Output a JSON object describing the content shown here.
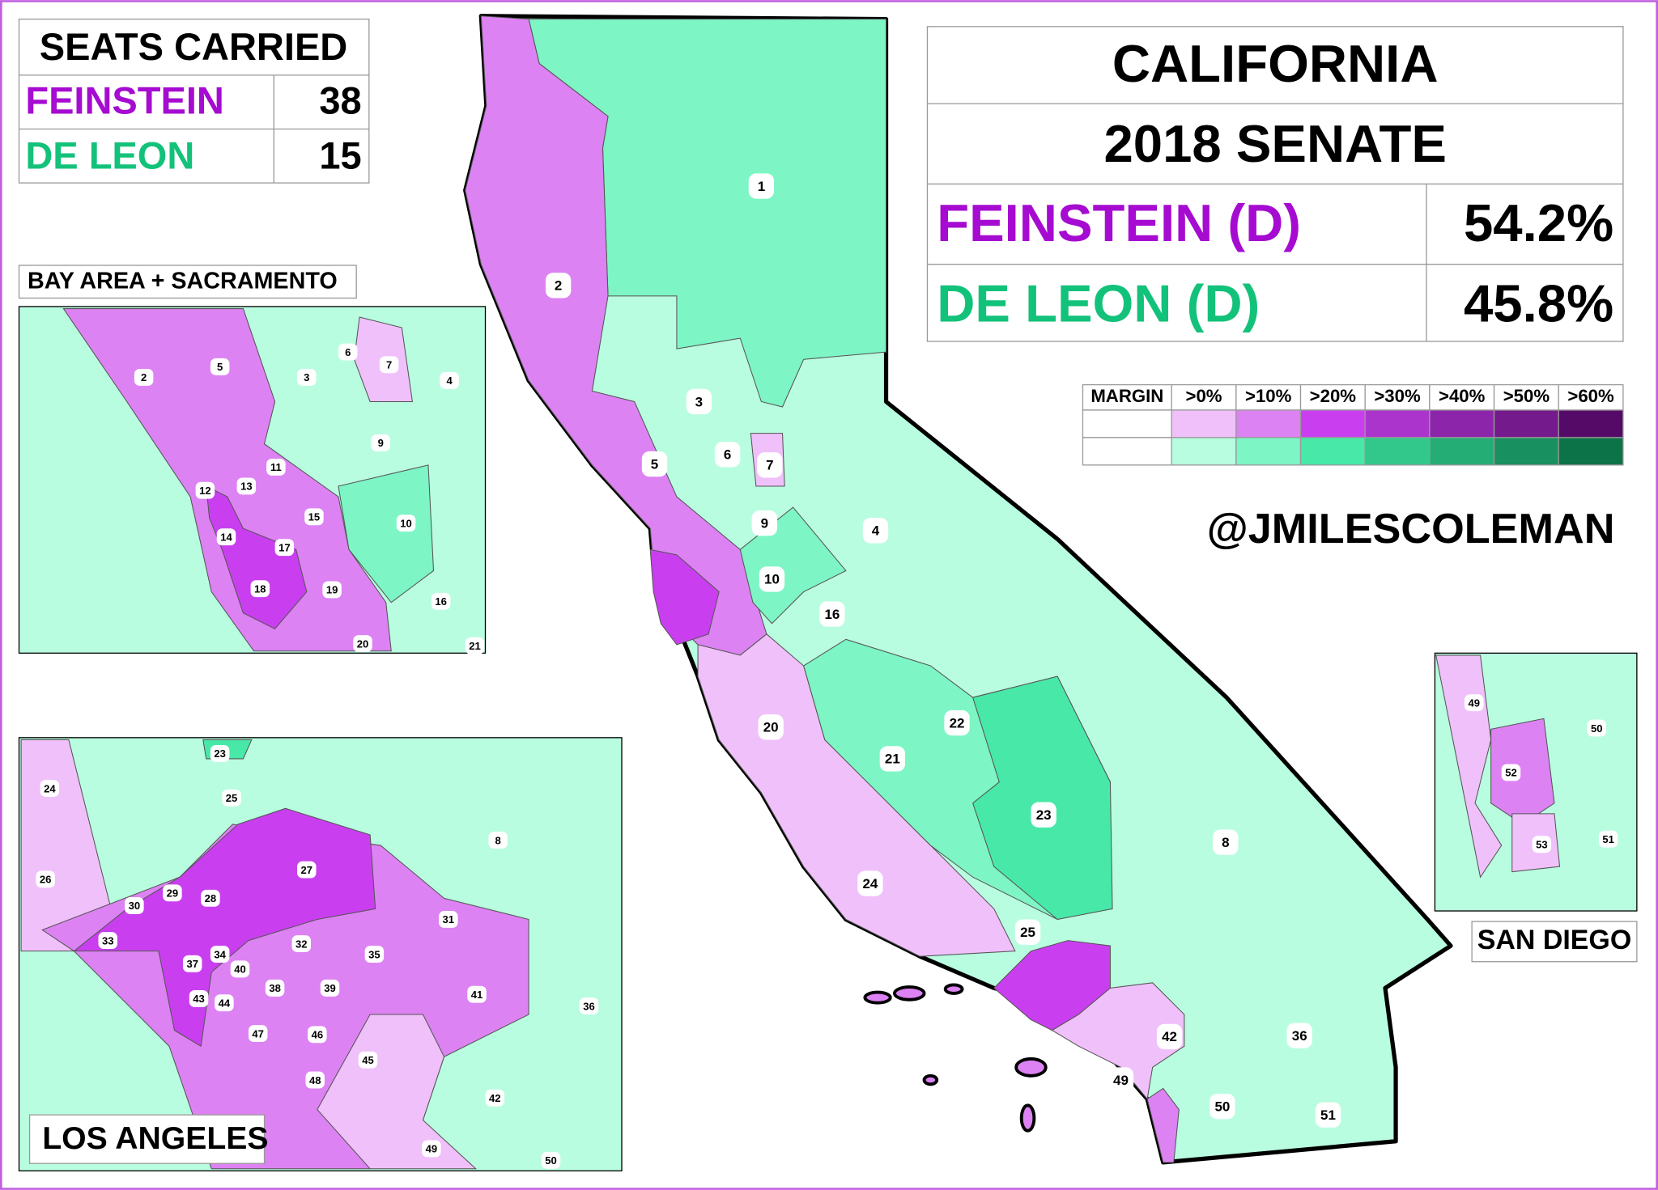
{
  "seats_table": {
    "title": "SEATS CARRIED",
    "rows": [
      {
        "name": "FEINSTEIN",
        "value": 38
      },
      {
        "name": "DE LEON",
        "value": 15
      }
    ]
  },
  "results": {
    "title": "CALIFORNIA",
    "subtitle": "2018 SENATE",
    "rows": [
      {
        "name": "FEINSTEIN (D)",
        "value": "54.2%"
      },
      {
        "name": "DE LEON (D)",
        "value": "45.8%"
      }
    ]
  },
  "legend": {
    "title": "MARGIN",
    "bins": [
      ">0%",
      ">10%",
      ">20%",
      ">30%",
      ">40%",
      ">50%",
      ">60%"
    ],
    "feinstein_colors": [
      "#f0c0fb",
      "#dd82f3",
      "#c93fef",
      "#ab35cc",
      "#8d25aa",
      "#741a8c",
      "#560a68"
    ],
    "de_leon_colors": [
      "#b9fde0",
      "#7df5c5",
      "#48e8a8",
      "#32c88c",
      "#25ad76",
      "#18905f",
      "#0c7348"
    ]
  },
  "credit": "@JMILESCOLEMAN",
  "districts": [
    "1",
    "2",
    "3",
    "4",
    "5",
    "6",
    "7",
    "8",
    "9",
    "10",
    "16",
    "20",
    "21",
    "22",
    "23",
    "24",
    "25",
    "36",
    "42",
    "49",
    "50",
    "51"
  ],
  "insets": [
    {
      "title": "BAY AREA + SACRAMENTO",
      "labels": [
        "2",
        "5",
        "3",
        "6",
        "7",
        "4",
        "9",
        "11",
        "12",
        "13",
        "15",
        "10",
        "14",
        "17",
        "18",
        "19",
        "16",
        "20",
        "21"
      ]
    },
    {
      "title": "LOS ANGELES",
      "labels": [
        "23",
        "24",
        "25",
        "8",
        "27",
        "26",
        "29",
        "28",
        "30",
        "31",
        "33",
        "32",
        "35",
        "34",
        "37",
        "40",
        "38",
        "39",
        "41",
        "36",
        "43",
        "44",
        "47",
        "46",
        "45",
        "48",
        "42",
        "49",
        "50"
      ]
    },
    {
      "title": "SAN DIEGO",
      "labels": [
        "49",
        "50",
        "52",
        "51",
        "53"
      ]
    }
  ]
}
